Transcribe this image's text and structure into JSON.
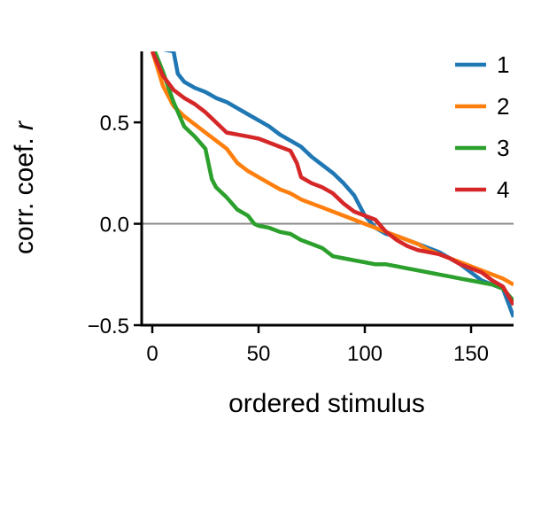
{
  "chart_data": {
    "type": "line",
    "xlabel": "ordered stimulus",
    "ylabel_parts": [
      "corr. coef. ",
      "r"
    ],
    "xlim": [
      -5,
      170
    ],
    "ylim": [
      -0.5,
      0.85
    ],
    "xticks": [
      0,
      50,
      100,
      150
    ],
    "xtick_labels": [
      "0",
      "50",
      "100",
      "150"
    ],
    "yticks": [
      -0.5,
      0.0,
      0.5
    ],
    "ytick_labels": [
      "−0.5",
      "0.0",
      "0.5"
    ],
    "reference_line": {
      "y": 0.0,
      "color": "#888888"
    },
    "grid": false,
    "legend_placement": "top-right",
    "series": [
      {
        "name": "1",
        "color": "#1f77b4",
        "x": [
          0,
          5,
          10,
          12,
          15,
          20,
          25,
          30,
          35,
          40,
          45,
          50,
          55,
          60,
          65,
          70,
          75,
          80,
          85,
          90,
          95,
          100,
          105,
          110,
          115,
          120,
          125,
          130,
          135,
          140,
          145,
          150,
          155,
          160,
          165,
          170
        ],
        "y": [
          0.88,
          0.86,
          0.85,
          0.74,
          0.7,
          0.67,
          0.65,
          0.62,
          0.6,
          0.57,
          0.54,
          0.51,
          0.48,
          0.44,
          0.41,
          0.38,
          0.33,
          0.29,
          0.25,
          0.2,
          0.14,
          0.04,
          -0.02,
          -0.05,
          -0.06,
          -0.08,
          -0.1,
          -0.12,
          -0.14,
          -0.17,
          -0.2,
          -0.24,
          -0.28,
          -0.3,
          -0.32,
          -0.46
        ]
      },
      {
        "name": "2",
        "color": "#ff7f0e",
        "x": [
          0,
          3,
          5,
          8,
          10,
          15,
          20,
          25,
          30,
          35,
          40,
          45,
          50,
          55,
          60,
          65,
          70,
          75,
          80,
          85,
          90,
          95,
          100,
          105,
          110,
          115,
          120,
          125,
          130,
          135,
          140,
          145,
          150,
          155,
          160,
          165,
          170
        ],
        "y": [
          0.85,
          0.75,
          0.68,
          0.62,
          0.58,
          0.53,
          0.49,
          0.45,
          0.41,
          0.37,
          0.3,
          0.26,
          0.23,
          0.2,
          0.17,
          0.15,
          0.12,
          0.1,
          0.08,
          0.06,
          0.04,
          0.02,
          0.0,
          -0.02,
          -0.04,
          -0.06,
          -0.08,
          -0.1,
          -0.13,
          -0.15,
          -0.17,
          -0.19,
          -0.21,
          -0.23,
          -0.25,
          -0.27,
          -0.3
        ]
      },
      {
        "name": "3",
        "color": "#2ca02c",
        "x": [
          0,
          5,
          10,
          15,
          20,
          25,
          28,
          30,
          35,
          40,
          45,
          48,
          50,
          55,
          60,
          65,
          70,
          75,
          80,
          85,
          90,
          95,
          100,
          105,
          110,
          115,
          120,
          125,
          130,
          135,
          140,
          145,
          150,
          155,
          160,
          165,
          170
        ],
        "y": [
          0.88,
          0.75,
          0.6,
          0.48,
          0.43,
          0.37,
          0.22,
          0.18,
          0.13,
          0.07,
          0.04,
          0.0,
          -0.01,
          -0.02,
          -0.04,
          -0.05,
          -0.08,
          -0.1,
          -0.12,
          -0.16,
          -0.17,
          -0.18,
          -0.19,
          -0.2,
          -0.2,
          -0.21,
          -0.22,
          -0.23,
          -0.24,
          -0.25,
          -0.26,
          -0.27,
          -0.28,
          -0.29,
          -0.3,
          -0.32,
          -0.38
        ]
      },
      {
        "name": "4",
        "color": "#d62728",
        "x": [
          0,
          5,
          10,
          15,
          20,
          25,
          30,
          35,
          40,
          45,
          50,
          55,
          60,
          65,
          68,
          70,
          75,
          80,
          85,
          90,
          95,
          100,
          105,
          110,
          115,
          120,
          125,
          130,
          135,
          140,
          145,
          150,
          155,
          160,
          165,
          170
        ],
        "y": [
          0.85,
          0.73,
          0.66,
          0.62,
          0.59,
          0.55,
          0.5,
          0.45,
          0.44,
          0.43,
          0.42,
          0.4,
          0.38,
          0.36,
          0.3,
          0.23,
          0.2,
          0.18,
          0.15,
          0.1,
          0.06,
          0.04,
          0.02,
          -0.04,
          -0.08,
          -0.11,
          -0.13,
          -0.14,
          -0.15,
          -0.17,
          -0.2,
          -0.22,
          -0.24,
          -0.28,
          -0.31,
          -0.4
        ]
      }
    ]
  }
}
